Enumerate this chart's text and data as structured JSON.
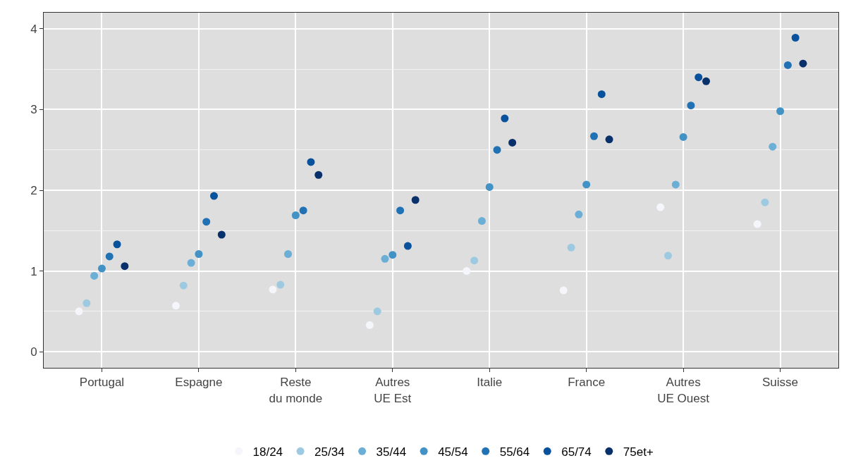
{
  "chart_data": {
    "type": "scatter",
    "categories": [
      "Portugal",
      "Espagne",
      "Reste du monde",
      "Autres UE Est",
      "Italie",
      "France",
      "Autres UE Ouest",
      "Suisse"
    ],
    "series": [
      {
        "name": "18/24",
        "color": "#f4f6fb",
        "values": [
          0.5,
          0.57,
          0.77,
          0.33,
          1.0,
          0.76,
          1.79,
          1.58
        ]
      },
      {
        "name": "25/34",
        "color": "#9ecae1",
        "values": [
          0.6,
          0.82,
          0.83,
          0.5,
          1.13,
          1.29,
          1.19,
          1.85
        ]
      },
      {
        "name": "35/44",
        "color": "#6baed6",
        "values": [
          0.94,
          1.1,
          1.21,
          1.15,
          1.62,
          1.7,
          2.07,
          2.54
        ]
      },
      {
        "name": "45/54",
        "color": "#4292c6",
        "values": [
          1.03,
          1.21,
          1.69,
          1.2,
          2.04,
          2.07,
          2.66,
          2.98
        ]
      },
      {
        "name": "55/64",
        "color": "#2171b5",
        "values": [
          1.18,
          1.61,
          1.75,
          1.75,
          2.5,
          2.67,
          3.05,
          3.55
        ]
      },
      {
        "name": "65/74",
        "color": "#08519c",
        "values": [
          1.33,
          1.93,
          2.35,
          1.31,
          2.89,
          3.19,
          3.4,
          3.89
        ]
      },
      {
        "name": "75et+",
        "color": "#08306b",
        "values": [
          1.06,
          1.45,
          2.19,
          1.88,
          2.59,
          2.63,
          3.35,
          3.57
        ]
      }
    ],
    "ylim": [
      -0.2,
      4.2
    ],
    "yticks": [
      0,
      1,
      2,
      3,
      4
    ],
    "grid": true,
    "legend": "bottom",
    "marker": "circle"
  }
}
